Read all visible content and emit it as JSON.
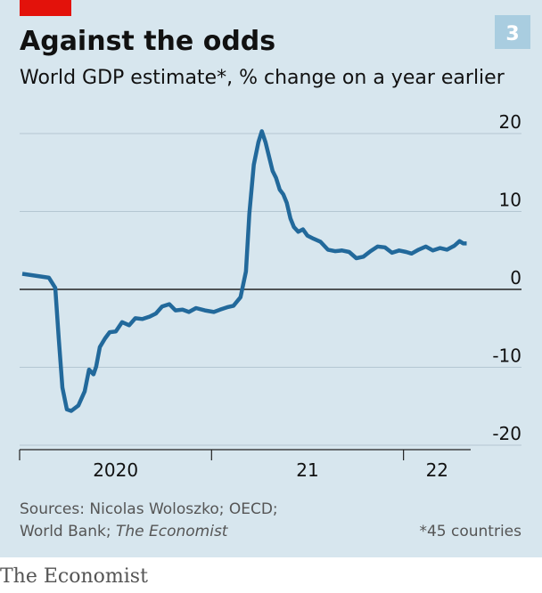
{
  "chart_data": {
    "type": "line",
    "title": "Against the odds",
    "chart_number": "3",
    "subtitle": "World GDP estimate*, % change on a year earlier",
    "x": [
      2020.014,
      2020.153,
      2020.186,
      2020.204,
      2020.223,
      2020.246,
      2020.269,
      2020.306,
      2020.339,
      2020.362,
      2020.385,
      2020.399,
      2020.418,
      2020.445,
      2020.469,
      2020.501,
      2020.534,
      2020.571,
      2020.603,
      2020.64,
      2020.677,
      2020.71,
      2020.742,
      2020.78,
      2020.812,
      2020.849,
      2020.882,
      2020.919,
      2020.965,
      2021.012,
      2021.044,
      2021.081,
      2021.114,
      2021.151,
      2021.179,
      2021.197,
      2021.22,
      2021.244,
      2021.262,
      2021.281,
      2021.299,
      2021.318,
      2021.336,
      2021.355,
      2021.374,
      2021.392,
      2021.411,
      2021.429,
      2021.452,
      2021.476,
      2021.499,
      2021.531,
      2021.568,
      2021.606,
      2021.643,
      2021.68,
      2021.717,
      2021.754,
      2021.791,
      2021.828,
      2021.865,
      2021.903,
      2021.94,
      2021.977,
      2022.014,
      2022.042,
      2022.079,
      2022.116,
      2022.153,
      2022.19,
      2022.227,
      2022.265,
      2022.292,
      2022.311,
      2022.329
    ],
    "series": [
      {
        "name": "World GDP estimate",
        "color": "#22699b",
        "values": [
          2.0,
          1.5,
          0.2,
          -6.3,
          -12.6,
          -15.4,
          -15.6,
          -14.9,
          -13.1,
          -10.3,
          -10.9,
          -9.9,
          -7.4,
          -6.3,
          -5.5,
          -5.4,
          -4.2,
          -4.6,
          -3.7,
          -3.8,
          -3.5,
          -3.1,
          -2.2,
          -1.9,
          -2.7,
          -2.6,
          -2.9,
          -2.4,
          -2.7,
          -2.9,
          -2.6,
          -2.3,
          -2.1,
          -1.0,
          2.3,
          9.7,
          16.0,
          18.9,
          20.3,
          18.9,
          17.1,
          15.2,
          14.3,
          12.8,
          12.2,
          11.1,
          9.1,
          8.0,
          7.4,
          7.7,
          6.9,
          6.5,
          6.1,
          5.1,
          4.9,
          5.0,
          4.8,
          4.0,
          4.2,
          4.9,
          5.5,
          5.4,
          4.7,
          5.0,
          4.8,
          4.6,
          5.1,
          5.5,
          5.0,
          5.3,
          5.1,
          5.6,
          6.2,
          5.9,
          5.9
        ]
      }
    ],
    "xlim": [
      2020,
      2022.35
    ],
    "xticks": [
      {
        "value": 2020,
        "label": "2020"
      },
      {
        "value": 2021,
        "label": "21"
      },
      {
        "value": 2022,
        "label": "22"
      }
    ],
    "ylim": [
      -20,
      20
    ],
    "yticks": [
      20,
      10,
      0,
      -10,
      -20
    ],
    "grid": true,
    "source_lines": [
      "Sources: Nicolas Woloszko; OECD;",
      "World Bank;"
    ],
    "source_italic": "The Economist",
    "note": "*45 countries",
    "brand": "The Economist"
  }
}
